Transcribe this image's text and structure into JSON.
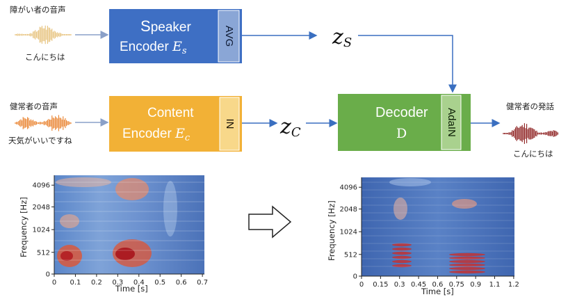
{
  "inputs": {
    "disordered": {
      "label": "障がい者の音声",
      "caption": "こんにちは",
      "color": "#e6c17a"
    },
    "healthy": {
      "label": "健常者の音声",
      "caption": "天気がいいですね",
      "color": "#e9812c"
    },
    "output": {
      "label": "健常者の発話",
      "caption": "こんにちは",
      "color": "#8a1a1a"
    }
  },
  "blocks": {
    "speaker_encoder": {
      "line1_first": "S",
      "line1_rest": "peaker",
      "line2": "Encoder ",
      "sym": "E",
      "sub": "s",
      "tag": "AVG",
      "color": "#3e6fc4"
    },
    "content_encoder": {
      "line1": "Content",
      "line2": "Encoder ",
      "sym": "E",
      "sub": "c",
      "tag": "IN",
      "color": "#f2b136"
    },
    "decoder": {
      "line1": "Decoder",
      "line2": "D",
      "tag": "AdaIN",
      "color": "#6aad4a"
    }
  },
  "latents": {
    "zs": {
      "sym": "z",
      "sub": "S"
    },
    "zc": {
      "sym": "z",
      "sub": "C"
    }
  },
  "chart_data": [
    {
      "type": "heatmap",
      "xlabel": "Time [s]",
      "ylabel": "Frequency [Hz]",
      "x_ticks": [
        "0",
        "0.1",
        "0.2",
        "0.3",
        "0.4",
        "0.5",
        "0.6",
        "0.7"
      ],
      "y_ticks": [
        "0",
        "512",
        "1024",
        "2048",
        "4096"
      ]
    },
    {
      "type": "heatmap",
      "xlabel": "Time [s]",
      "ylabel": "Frequency [Hz]",
      "x_ticks": [
        "0",
        "0.15",
        "0.3",
        "0.45",
        "0.6",
        "0.75",
        "0.9",
        "1.1",
        "1.2"
      ],
      "y_ticks": [
        "0",
        "512",
        "1024",
        "2048",
        "4096"
      ]
    }
  ]
}
